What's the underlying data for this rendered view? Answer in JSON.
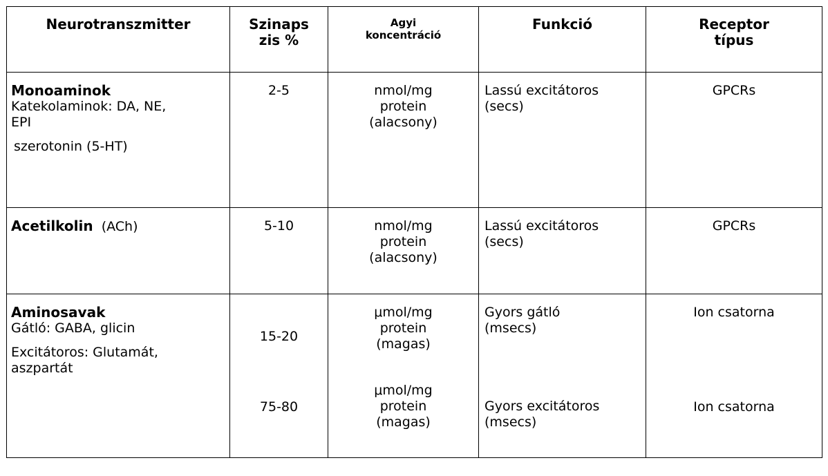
{
  "headers": {
    "neurotransmitter": "Neurotranszmitter",
    "synapse_line1": "Szinaps",
    "synapse_line2": "zis %",
    "brain_line1": "Agyi",
    "brain_line2": "koncentráció",
    "function": "Funkció",
    "receptor_line1": "Receptor",
    "receptor_line2": "típus"
  },
  "rows": [
    {
      "title": "Monoaminok",
      "line1": "Katekolaminok: DA, NE,",
      "line2": "EPI",
      "line3": "szerotonin (5-HT)",
      "percent": "2-5",
      "conc1": "nmol/mg",
      "conc2": "protein",
      "conc3": "(alacsony)",
      "func1": "Lassú excitátoros",
      "func2": "(secs)",
      "receptor": "GPCRs"
    },
    {
      "title": "Acetilkolin",
      "suffix": "(ACh)",
      "percent": "5-10",
      "conc1": "nmol/mg",
      "conc2": "protein",
      "conc3": "(alacsony)",
      "func1": "Lassú excitátoros",
      "func2": "(secs)",
      "receptor": "GPCRs"
    },
    {
      "title": "Aminosavak",
      "line1": "Gátló: GABA, glicin",
      "line2": "Excitátoros: Glutamát,",
      "line3": "aszpartát",
      "percent_a": "15-20",
      "percent_b": "75-80",
      "conc_a1": "μmol/mg",
      "conc_a2": "protein",
      "conc_a3": "(magas)",
      "conc_b1": "μmol/mg",
      "conc_b2": "protein",
      "conc_b3": "(magas)",
      "func_a1": "Gyors gátló",
      "func_a2": "(msecs)",
      "func_b1": "Gyors excitátoros",
      "func_b2": "(msecs)",
      "receptor_a": "Ion csatorna",
      "receptor_b": "Ion csatorna"
    }
  ]
}
